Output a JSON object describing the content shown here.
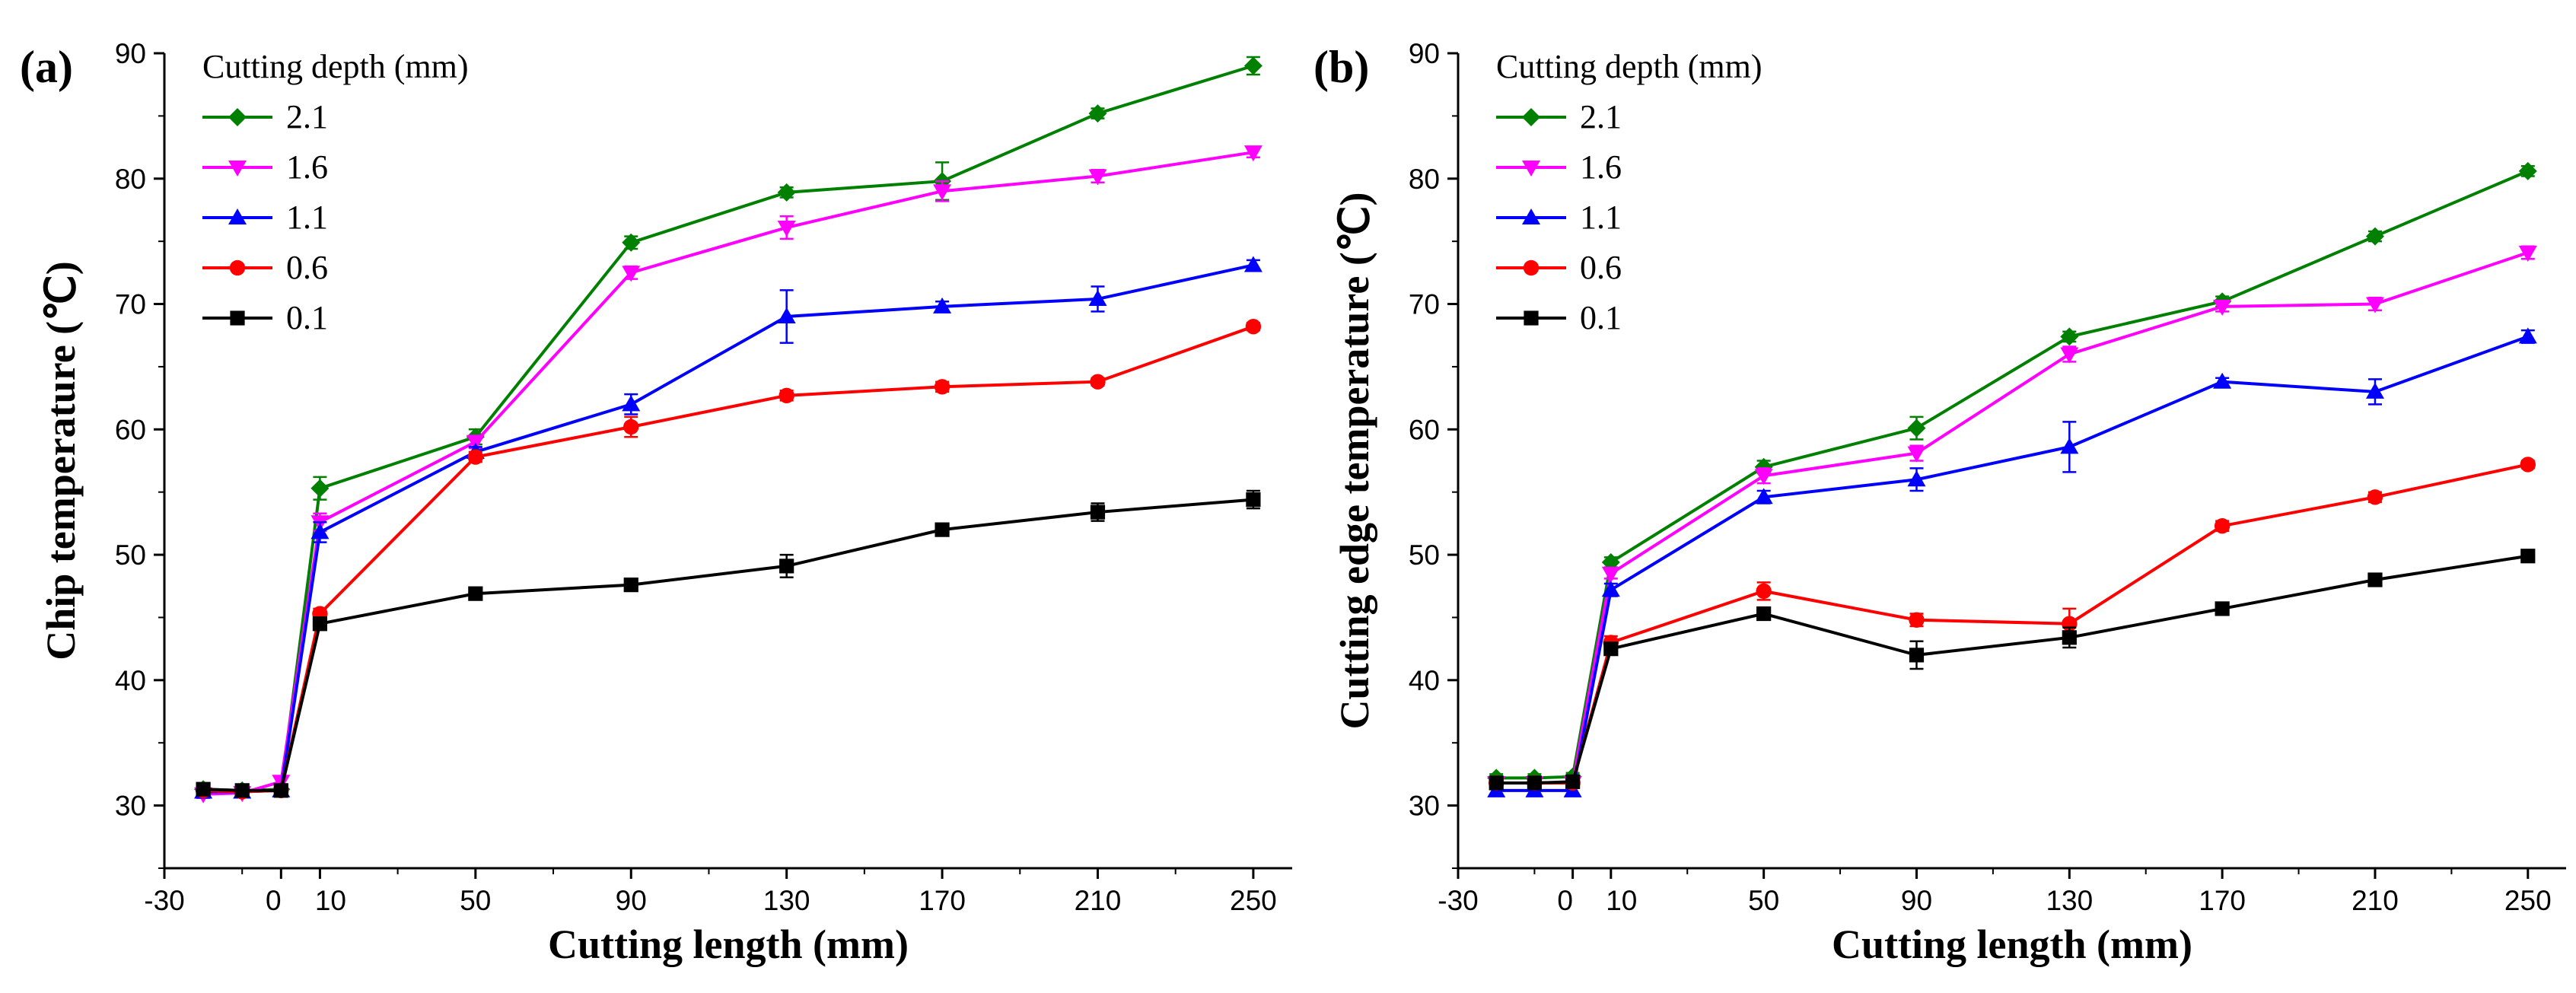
{
  "chart_data": [
    {
      "type": "line",
      "panel_label": "(a)",
      "xlabel": "Cutting length (mm)",
      "ylabel": "Chip temperature (℃)",
      "xlim": [
        -30,
        260
      ],
      "ylim": [
        25,
        90
      ],
      "xticks": [
        -30,
        0,
        10,
        50,
        90,
        130,
        170,
        210,
        250
      ],
      "yticks": [
        30,
        40,
        50,
        60,
        70,
        80,
        90
      ],
      "legend_title": "Cutting depth (mm)",
      "x": [
        -20,
        -10,
        0,
        10,
        50,
        90,
        130,
        170,
        210,
        250
      ],
      "series": [
        {
          "name": "2.1",
          "color": "#008000",
          "marker": "diamond",
          "values": [
            31.3,
            31.2,
            31.3,
            55.3,
            59.4,
            74.9,
            78.9,
            79.8,
            85.2,
            89.0
          ],
          "errors": [
            0.3,
            0.3,
            0.3,
            0.9,
            0.6,
            0.5,
            0.4,
            1.5,
            0.4,
            0.7
          ]
        },
        {
          "name": "1.6",
          "color": "#ff00ff",
          "marker": "triangle-down",
          "values": [
            30.9,
            31.0,
            31.9,
            52.6,
            59.0,
            72.5,
            76.1,
            79.0,
            80.2,
            82.1
          ],
          "errors": [
            0.3,
            0.3,
            0.4,
            0.7,
            0.5,
            0.5,
            0.9,
            0.8,
            0.5,
            0.4
          ]
        },
        {
          "name": "1.1",
          "color": "#0000ff",
          "marker": "triangle-up",
          "values": [
            31.1,
            31.1,
            31.2,
            51.8,
            58.2,
            62.0,
            69.0,
            69.8,
            70.4,
            73.1
          ],
          "errors": [
            0.3,
            0.3,
            0.3,
            0.8,
            0.4,
            0.8,
            2.1,
            0.4,
            1.0,
            0.4
          ]
        },
        {
          "name": "0.6",
          "color": "#ff0000",
          "marker": "circle",
          "values": [
            31.2,
            31.1,
            31.2,
            45.3,
            57.8,
            60.2,
            62.7,
            63.4,
            63.8,
            68.2
          ],
          "errors": [
            0.3,
            0.3,
            0.3,
            0.4,
            0.4,
            0.8,
            0.4,
            0.4,
            0.3,
            0.3
          ]
        },
        {
          "name": "0.1",
          "color": "#000000",
          "marker": "square",
          "values": [
            31.3,
            31.2,
            31.2,
            44.5,
            46.9,
            47.6,
            49.1,
            52.0,
            53.4,
            54.4
          ],
          "errors": [
            0.3,
            0.3,
            0.3,
            0.5,
            0.4,
            0.4,
            0.9,
            0.4,
            0.7,
            0.7
          ]
        }
      ]
    },
    {
      "type": "line",
      "panel_label": "(b)",
      "xlabel": "Cutting length (mm)",
      "ylabel": "Cutting edge temperature (℃)",
      "xlim": [
        -30,
        260
      ],
      "ylim": [
        25,
        90
      ],
      "xticks": [
        -30,
        0,
        10,
        50,
        90,
        130,
        170,
        210,
        250
      ],
      "yticks": [
        30,
        40,
        50,
        60,
        70,
        80,
        90
      ],
      "legend_title": "Cutting depth (mm)",
      "x": [
        -20,
        -10,
        0,
        10,
        50,
        90,
        130,
        170,
        210,
        250
      ],
      "series": [
        {
          "name": "2.1",
          "color": "#008000",
          "marker": "diamond",
          "values": [
            32.2,
            32.2,
            32.3,
            49.4,
            57.0,
            60.1,
            67.4,
            70.2,
            75.4,
            80.6
          ],
          "errors": [
            0.3,
            0.3,
            0.3,
            0.4,
            0.5,
            0.9,
            0.4,
            0.4,
            0.4,
            0.4
          ]
        },
        {
          "name": "1.6",
          "color": "#ff00ff",
          "marker": "triangle-down",
          "values": [
            31.8,
            31.8,
            31.8,
            48.5,
            56.3,
            58.1,
            66.0,
            69.8,
            70.0,
            74.1
          ],
          "errors": [
            0.3,
            0.3,
            0.3,
            0.4,
            0.6,
            0.6,
            0.6,
            0.4,
            0.5,
            0.5
          ]
        },
        {
          "name": "1.1",
          "color": "#0000ff",
          "marker": "triangle-up",
          "values": [
            31.2,
            31.2,
            31.2,
            47.2,
            54.6,
            56.0,
            58.6,
            63.8,
            63.0,
            67.4
          ],
          "errors": [
            0.3,
            0.3,
            0.3,
            0.5,
            0.5,
            0.9,
            2.0,
            0.3,
            1.0,
            0.5
          ]
        },
        {
          "name": "0.6",
          "color": "#ff0000",
          "marker": "circle",
          "values": [
            31.8,
            31.8,
            31.8,
            43.0,
            47.1,
            44.8,
            44.5,
            52.3,
            54.6,
            57.2
          ],
          "errors": [
            0.3,
            0.3,
            0.3,
            0.5,
            0.7,
            0.5,
            1.2,
            0.4,
            0.4,
            0.3
          ]
        },
        {
          "name": "0.1",
          "color": "#000000",
          "marker": "square",
          "values": [
            31.8,
            31.8,
            31.9,
            42.5,
            45.3,
            42.0,
            43.4,
            45.7,
            48.0,
            49.9
          ],
          "errors": [
            0.3,
            0.3,
            0.3,
            0.4,
            0.3,
            1.1,
            0.8,
            0.3,
            0.5,
            0.4
          ]
        }
      ]
    }
  ]
}
